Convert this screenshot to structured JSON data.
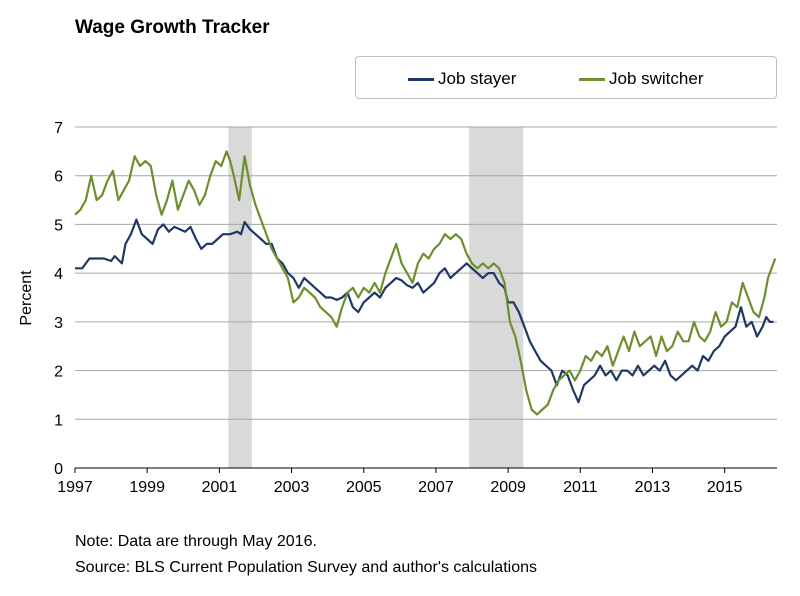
{
  "chart_data": {
    "type": "line",
    "title": "Wage Growth Tracker",
    "ylabel": "Percent",
    "xlabel": "",
    "xlim": [
      1997.0,
      2016.45
    ],
    "ylim": [
      0,
      7
    ],
    "yticks": [
      "0",
      "1",
      "2",
      "3",
      "4",
      "5",
      "6",
      "7"
    ],
    "xticks": [
      "1997",
      "1999",
      "2001",
      "2003",
      "2005",
      "2007",
      "2009",
      "2011",
      "2013",
      "2015"
    ],
    "grid": true,
    "legend_position": "top",
    "recessions": [
      [
        2001.25,
        2001.9
      ],
      [
        2007.92,
        2009.42
      ]
    ],
    "series": [
      {
        "name": "Job stayer",
        "color": "#1f3864",
        "points": [
          [
            1997.0,
            4.1
          ],
          [
            1997.2,
            4.1
          ],
          [
            1997.4,
            4.3
          ],
          [
            1997.6,
            4.3
          ],
          [
            1997.8,
            4.3
          ],
          [
            1998.0,
            4.25
          ],
          [
            1998.1,
            4.35
          ],
          [
            1998.3,
            4.2
          ],
          [
            1998.4,
            4.6
          ],
          [
            1998.55,
            4.8
          ],
          [
            1998.7,
            5.1
          ],
          [
            1998.85,
            4.8
          ],
          [
            1999.0,
            4.7
          ],
          [
            1999.15,
            4.6
          ],
          [
            1999.3,
            4.9
          ],
          [
            1999.45,
            5.0
          ],
          [
            1999.6,
            4.85
          ],
          [
            1999.75,
            4.95
          ],
          [
            1999.9,
            4.9
          ],
          [
            2000.05,
            4.85
          ],
          [
            2000.2,
            4.95
          ],
          [
            2000.35,
            4.7
          ],
          [
            2000.5,
            4.5
          ],
          [
            2000.65,
            4.6
          ],
          [
            2000.8,
            4.6
          ],
          [
            2000.95,
            4.7
          ],
          [
            2001.1,
            4.8
          ],
          [
            2001.3,
            4.8
          ],
          [
            2001.5,
            4.85
          ],
          [
            2001.6,
            4.8
          ],
          [
            2001.7,
            5.05
          ],
          [
            2001.85,
            4.9
          ],
          [
            2002.0,
            4.8
          ],
          [
            2002.15,
            4.7
          ],
          [
            2002.3,
            4.6
          ],
          [
            2002.45,
            4.6
          ],
          [
            2002.6,
            4.3
          ],
          [
            2002.75,
            4.2
          ],
          [
            2002.9,
            4.0
          ],
          [
            2003.05,
            3.9
          ],
          [
            2003.2,
            3.7
          ],
          [
            2003.35,
            3.9
          ],
          [
            2003.5,
            3.8
          ],
          [
            2003.65,
            3.7
          ],
          [
            2003.8,
            3.6
          ],
          [
            2003.95,
            3.5
          ],
          [
            2004.1,
            3.5
          ],
          [
            2004.25,
            3.45
          ],
          [
            2004.4,
            3.5
          ],
          [
            2004.55,
            3.6
          ],
          [
            2004.7,
            3.3
          ],
          [
            2004.85,
            3.2
          ],
          [
            2005.0,
            3.4
          ],
          [
            2005.15,
            3.5
          ],
          [
            2005.3,
            3.6
          ],
          [
            2005.45,
            3.5
          ],
          [
            2005.6,
            3.7
          ],
          [
            2005.75,
            3.8
          ],
          [
            2005.9,
            3.9
          ],
          [
            2006.05,
            3.85
          ],
          [
            2006.2,
            3.75
          ],
          [
            2006.35,
            3.7
          ],
          [
            2006.5,
            3.8
          ],
          [
            2006.65,
            3.6
          ],
          [
            2006.8,
            3.7
          ],
          [
            2006.95,
            3.8
          ],
          [
            2007.1,
            4.0
          ],
          [
            2007.25,
            4.1
          ],
          [
            2007.4,
            3.9
          ],
          [
            2007.55,
            4.0
          ],
          [
            2007.7,
            4.1
          ],
          [
            2007.85,
            4.2
          ],
          [
            2008.0,
            4.1
          ],
          [
            2008.15,
            4.0
          ],
          [
            2008.3,
            3.9
          ],
          [
            2008.45,
            4.0
          ],
          [
            2008.6,
            4.0
          ],
          [
            2008.75,
            3.8
          ],
          [
            2008.9,
            3.7
          ],
          [
            2009.0,
            3.4
          ],
          [
            2009.15,
            3.4
          ],
          [
            2009.3,
            3.2
          ],
          [
            2009.45,
            2.9
          ],
          [
            2009.6,
            2.6
          ],
          [
            2009.75,
            2.4
          ],
          [
            2009.9,
            2.2
          ],
          [
            2010.05,
            2.1
          ],
          [
            2010.2,
            2.0
          ],
          [
            2010.35,
            1.7
          ],
          [
            2010.5,
            2.0
          ],
          [
            2010.65,
            1.9
          ],
          [
            2010.8,
            1.6
          ],
          [
            2010.95,
            1.35
          ],
          [
            2011.1,
            1.7
          ],
          [
            2011.25,
            1.8
          ],
          [
            2011.4,
            1.9
          ],
          [
            2011.55,
            2.1
          ],
          [
            2011.7,
            1.9
          ],
          [
            2011.85,
            2.0
          ],
          [
            2012.0,
            1.8
          ],
          [
            2012.15,
            2.0
          ],
          [
            2012.3,
            2.0
          ],
          [
            2012.45,
            1.9
          ],
          [
            2012.6,
            2.1
          ],
          [
            2012.75,
            1.9
          ],
          [
            2012.9,
            2.0
          ],
          [
            2013.05,
            2.1
          ],
          [
            2013.2,
            2.0
          ],
          [
            2013.35,
            2.2
          ],
          [
            2013.5,
            1.9
          ],
          [
            2013.65,
            1.8
          ],
          [
            2013.8,
            1.9
          ],
          [
            2013.95,
            2.0
          ],
          [
            2014.1,
            2.1
          ],
          [
            2014.25,
            2.0
          ],
          [
            2014.4,
            2.3
          ],
          [
            2014.55,
            2.2
          ],
          [
            2014.7,
            2.4
          ],
          [
            2014.85,
            2.5
          ],
          [
            2015.0,
            2.7
          ],
          [
            2015.15,
            2.8
          ],
          [
            2015.3,
            2.9
          ],
          [
            2015.45,
            3.3
          ],
          [
            2015.6,
            2.9
          ],
          [
            2015.75,
            3.0
          ],
          [
            2015.9,
            2.7
          ],
          [
            2016.05,
            2.9
          ],
          [
            2016.15,
            3.1
          ],
          [
            2016.25,
            3.0
          ],
          [
            2016.35,
            3.0
          ]
        ]
      },
      {
        "name": "Job switcher",
        "color": "#6e8f2e",
        "points": [
          [
            1997.0,
            5.2
          ],
          [
            1997.15,
            5.3
          ],
          [
            1997.3,
            5.5
          ],
          [
            1997.45,
            6.0
          ],
          [
            1997.6,
            5.5
          ],
          [
            1997.75,
            5.6
          ],
          [
            1997.9,
            5.9
          ],
          [
            1998.05,
            6.1
          ],
          [
            1998.2,
            5.5
          ],
          [
            1998.35,
            5.7
          ],
          [
            1998.5,
            5.9
          ],
          [
            1998.65,
            6.4
          ],
          [
            1998.8,
            6.2
          ],
          [
            1998.95,
            6.3
          ],
          [
            1999.1,
            6.2
          ],
          [
            1999.25,
            5.6
          ],
          [
            1999.4,
            5.2
          ],
          [
            1999.55,
            5.5
          ],
          [
            1999.7,
            5.9
          ],
          [
            1999.85,
            5.3
          ],
          [
            2000.0,
            5.6
          ],
          [
            2000.15,
            5.9
          ],
          [
            2000.3,
            5.7
          ],
          [
            2000.45,
            5.4
          ],
          [
            2000.6,
            5.6
          ],
          [
            2000.75,
            6.0
          ],
          [
            2000.9,
            6.3
          ],
          [
            2001.05,
            6.2
          ],
          [
            2001.2,
            6.5
          ],
          [
            2001.3,
            6.3
          ],
          [
            2001.4,
            6.0
          ],
          [
            2001.55,
            5.5
          ],
          [
            2001.7,
            6.4
          ],
          [
            2001.85,
            5.8
          ],
          [
            2002.0,
            5.4
          ],
          [
            2002.15,
            5.1
          ],
          [
            2002.3,
            4.8
          ],
          [
            2002.45,
            4.5
          ],
          [
            2002.6,
            4.3
          ],
          [
            2002.75,
            4.1
          ],
          [
            2002.9,
            3.9
          ],
          [
            2003.05,
            3.4
          ],
          [
            2003.2,
            3.5
          ],
          [
            2003.35,
            3.7
          ],
          [
            2003.5,
            3.6
          ],
          [
            2003.65,
            3.5
          ],
          [
            2003.8,
            3.3
          ],
          [
            2003.95,
            3.2
          ],
          [
            2004.1,
            3.1
          ],
          [
            2004.25,
            2.9
          ],
          [
            2004.4,
            3.3
          ],
          [
            2004.55,
            3.6
          ],
          [
            2004.7,
            3.7
          ],
          [
            2004.85,
            3.5
          ],
          [
            2005.0,
            3.7
          ],
          [
            2005.15,
            3.6
          ],
          [
            2005.3,
            3.8
          ],
          [
            2005.45,
            3.6
          ],
          [
            2005.6,
            4.0
          ],
          [
            2005.75,
            4.3
          ],
          [
            2005.9,
            4.6
          ],
          [
            2006.05,
            4.2
          ],
          [
            2006.2,
            4.0
          ],
          [
            2006.35,
            3.8
          ],
          [
            2006.5,
            4.2
          ],
          [
            2006.65,
            4.4
          ],
          [
            2006.8,
            4.3
          ],
          [
            2006.95,
            4.5
          ],
          [
            2007.1,
            4.6
          ],
          [
            2007.25,
            4.8
          ],
          [
            2007.4,
            4.7
          ],
          [
            2007.55,
            4.8
          ],
          [
            2007.7,
            4.7
          ],
          [
            2007.85,
            4.4
          ],
          [
            2008.0,
            4.2
          ],
          [
            2008.15,
            4.1
          ],
          [
            2008.3,
            4.2
          ],
          [
            2008.45,
            4.1
          ],
          [
            2008.6,
            4.2
          ],
          [
            2008.75,
            4.1
          ],
          [
            2008.9,
            3.8
          ],
          [
            2009.05,
            3.0
          ],
          [
            2009.2,
            2.7
          ],
          [
            2009.35,
            2.2
          ],
          [
            2009.5,
            1.6
          ],
          [
            2009.65,
            1.2
          ],
          [
            2009.8,
            1.1
          ],
          [
            2009.95,
            1.2
          ],
          [
            2010.1,
            1.3
          ],
          [
            2010.25,
            1.6
          ],
          [
            2010.4,
            1.8
          ],
          [
            2010.55,
            1.9
          ],
          [
            2010.7,
            2.0
          ],
          [
            2010.85,
            1.8
          ],
          [
            2011.0,
            2.0
          ],
          [
            2011.15,
            2.3
          ],
          [
            2011.3,
            2.2
          ],
          [
            2011.45,
            2.4
          ],
          [
            2011.6,
            2.3
          ],
          [
            2011.75,
            2.5
          ],
          [
            2011.9,
            2.1
          ],
          [
            2012.05,
            2.4
          ],
          [
            2012.2,
            2.7
          ],
          [
            2012.35,
            2.4
          ],
          [
            2012.5,
            2.8
          ],
          [
            2012.65,
            2.5
          ],
          [
            2012.8,
            2.6
          ],
          [
            2012.95,
            2.7
          ],
          [
            2013.1,
            2.3
          ],
          [
            2013.25,
            2.7
          ],
          [
            2013.4,
            2.4
          ],
          [
            2013.55,
            2.5
          ],
          [
            2013.7,
            2.8
          ],
          [
            2013.85,
            2.6
          ],
          [
            2014.0,
            2.6
          ],
          [
            2014.15,
            3.0
          ],
          [
            2014.3,
            2.7
          ],
          [
            2014.45,
            2.6
          ],
          [
            2014.6,
            2.8
          ],
          [
            2014.75,
            3.2
          ],
          [
            2014.9,
            2.9
          ],
          [
            2015.05,
            3.0
          ],
          [
            2015.2,
            3.4
          ],
          [
            2015.35,
            3.3
          ],
          [
            2015.5,
            3.8
          ],
          [
            2015.65,
            3.5
          ],
          [
            2015.8,
            3.2
          ],
          [
            2015.95,
            3.1
          ],
          [
            2016.1,
            3.5
          ],
          [
            2016.2,
            3.9
          ],
          [
            2016.3,
            4.1
          ],
          [
            2016.4,
            4.3
          ]
        ]
      }
    ],
    "notes": [
      "Note: Data are through May 2016.",
      "Source: BLS Current Population Survey and author's calculations"
    ]
  }
}
